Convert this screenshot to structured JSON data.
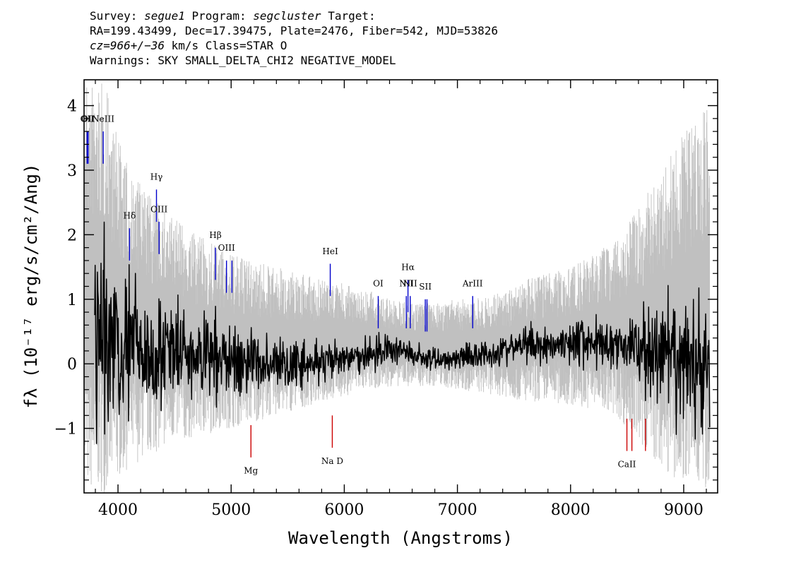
{
  "header": {
    "line1": {
      "survey_key": "Survey:",
      "survey": "segue1",
      "program_key": "Program:",
      "program": "segcluster",
      "target_key": "Target:"
    },
    "line2": "RA=199.43499, Dec=17.39475, Plate=2476, Fiber=542, MJD=53826",
    "line3": {
      "cz": "cz=966+/−36",
      "rest": "km/s Class=STAR O"
    },
    "line4": "Warnings: SKY SMALL_DELTA_CHI2 NEGATIVE_MODEL"
  },
  "chart_data": {
    "type": "line",
    "xlabel": "Wavelength (Angstroms)",
    "ylabel": "fλ (10⁻¹⁷ erg/s/cm²/Ang)",
    "xlim": [
      3700,
      9300
    ],
    "ylim": [
      -2.0,
      4.4
    ],
    "x_ticks": [
      4000,
      5000,
      6000,
      7000,
      8000,
      9000
    ],
    "x_tick_labels": [
      "4000",
      "5000",
      "6000",
      "7000",
      "8000",
      "9000"
    ],
    "y_ticks": [
      -1,
      0,
      1,
      2,
      3,
      4
    ],
    "y_tick_labels": [
      "−1",
      "0",
      "1",
      "2",
      "3",
      "4"
    ],
    "grid": false,
    "series": [
      {
        "role": "flux-error",
        "color": "#c0c0c0",
        "x": [
          3700,
          3800,
          3900,
          4000,
          4100,
          4200,
          4300,
          4400,
          4500,
          4600,
          4700,
          4800,
          4900,
          5000,
          5200,
          5400,
          5600,
          5800,
          6000,
          6200,
          6400,
          6600,
          6800,
          7000,
          7200,
          7400,
          7600,
          7800,
          8000,
          8200,
          8400,
          8600,
          8800,
          9000,
          9200
        ],
        "y_low": [
          -2.0,
          -2.0,
          -2.0,
          -1.8,
          -1.6,
          -1.5,
          -1.4,
          -1.3,
          -1.2,
          -1.2,
          -1.1,
          -1.1,
          -1.0,
          -1.0,
          -0.9,
          -0.8,
          -0.7,
          -0.6,
          -0.5,
          -0.4,
          -0.35,
          -0.35,
          -0.35,
          -0.4,
          -0.45,
          -0.5,
          -0.6,
          -0.6,
          -0.65,
          -0.7,
          -0.8,
          -1.2,
          -1.6,
          -1.9,
          -2.0
        ],
        "y_high": [
          4.4,
          4.4,
          4.3,
          3.5,
          3.0,
          2.8,
          2.6,
          2.4,
          2.3,
          2.1,
          2.0,
          1.9,
          1.8,
          1.7,
          1.6,
          1.5,
          1.4,
          1.3,
          1.25,
          1.15,
          1.0,
          0.95,
          0.95,
          1.0,
          1.05,
          1.1,
          1.3,
          1.4,
          1.5,
          1.7,
          1.9,
          2.4,
          3.0,
          3.6,
          4.0
        ]
      },
      {
        "role": "flux",
        "color": "#000000",
        "x": [
          3700,
          3800,
          3900,
          4000,
          4100,
          4200,
          4300,
          4400,
          4500,
          4600,
          4700,
          4800,
          4900,
          5000,
          5200,
          5400,
          5600,
          5800,
          6000,
          6200,
          6400,
          6600,
          6800,
          7000,
          7200,
          7400,
          7600,
          7800,
          8000,
          8200,
          8400,
          8600,
          8800,
          9000,
          9200
        ],
        "y": [
          1.2,
          0.6,
          0.4,
          0.3,
          0.25,
          0.2,
          0.2,
          0.2,
          0.15,
          0.15,
          0.1,
          0.1,
          0.1,
          0.05,
          0.05,
          0.0,
          0.0,
          0.0,
          0.05,
          0.15,
          0.25,
          0.15,
          0.05,
          0.1,
          0.15,
          0.2,
          0.3,
          0.3,
          0.35,
          0.35,
          0.3,
          0.25,
          0.1,
          0.0,
          0.0
        ],
        "amplitude": [
          1.6,
          1.4,
          1.2,
          0.9,
          0.8,
          0.7,
          0.65,
          0.6,
          0.55,
          0.5,
          0.5,
          0.45,
          0.45,
          0.4,
          0.35,
          0.3,
          0.28,
          0.25,
          0.22,
          0.2,
          0.18,
          0.15,
          0.15,
          0.16,
          0.17,
          0.18,
          0.2,
          0.22,
          0.24,
          0.28,
          0.32,
          0.45,
          0.6,
          0.75,
          0.9
        ]
      }
    ],
    "emission_lines": [
      {
        "label": "OII",
        "wavelength": 3727,
        "y_base": 3.1,
        "y_top": 3.6,
        "label_y": 3.75,
        "color": "#0000cc"
      },
      {
        "label": "OII",
        "wavelength": 3736,
        "y_base": 3.1,
        "y_top": 3.6,
        "label_y": 3.75,
        "color": "#0000cc"
      },
      {
        "label": "NeIII",
        "wavelength": 3869,
        "y_base": 3.1,
        "y_top": 3.6,
        "label_y": 3.75,
        "color": "#0000cc"
      },
      {
        "label": "Hδ",
        "wavelength": 4102,
        "y_base": 1.6,
        "y_top": 2.1,
        "label_y": 2.25,
        "color": "#0000cc"
      },
      {
        "label": "Hγ",
        "wavelength": 4340,
        "y_base": 2.2,
        "y_top": 2.7,
        "label_y": 2.85,
        "color": "#0000cc"
      },
      {
        "label": "OIII",
        "wavelength": 4363,
        "y_base": 1.7,
        "y_top": 2.2,
        "label_y": 2.35,
        "color": "#0000cc"
      },
      {
        "label": "Hβ",
        "wavelength": 4861,
        "y_base": 1.3,
        "y_top": 1.8,
        "label_y": 1.95,
        "color": "#0000cc"
      },
      {
        "label": "OIII",
        "wavelength": 4959,
        "y_base": 1.1,
        "y_top": 1.6,
        "label_y": 1.75,
        "color": "#0000cc"
      },
      {
        "label": "",
        "wavelength": 5007,
        "y_base": 1.1,
        "y_top": 1.6,
        "label_y": 1.75,
        "color": "#0000cc"
      },
      {
        "label": "HeI",
        "wavelength": 5876,
        "y_base": 1.05,
        "y_top": 1.55,
        "label_y": 1.7,
        "color": "#0000cc"
      },
      {
        "label": "OI",
        "wavelength": 6300,
        "y_base": 0.55,
        "y_top": 1.05,
        "label_y": 1.2,
        "color": "#0000cc"
      },
      {
        "label": "NII",
        "wavelength": 6548,
        "y_base": 0.55,
        "y_top": 1.05,
        "label_y": 1.2,
        "color": "#0000cc"
      },
      {
        "label": "Hα",
        "wavelength": 6563,
        "y_base": 0.8,
        "y_top": 1.3,
        "label_y": 1.45,
        "color": "#0000cc"
      },
      {
        "label": "NII",
        "wavelength": 6583,
        "y_base": 0.55,
        "y_top": 1.05,
        "label_y": 1.2,
        "color": "#0000cc"
      },
      {
        "label": "SII",
        "wavelength": 6716,
        "y_base": 0.5,
        "y_top": 1.0,
        "label_y": 1.15,
        "color": "#0000cc"
      },
      {
        "label": "",
        "wavelength": 6731,
        "y_base": 0.5,
        "y_top": 1.0,
        "label_y": 1.15,
        "color": "#0000cc"
      },
      {
        "label": "ArIII",
        "wavelength": 7135,
        "y_base": 0.55,
        "y_top": 1.05,
        "label_y": 1.2,
        "color": "#0000cc"
      }
    ],
    "absorption_lines": [
      {
        "label": "Mg",
        "wavelength": 5175,
        "y_top": -0.95,
        "y_bottom": -1.45,
        "label_y": -1.7,
        "color": "#cc0000"
      },
      {
        "label": "Na D",
        "wavelength": 5894,
        "y_top": -0.8,
        "y_bottom": -1.3,
        "label_y": -1.55,
        "color": "#cc0000"
      },
      {
        "label": "CaII",
        "wavelength": 8498,
        "y_top": -0.85,
        "y_bottom": -1.35,
        "label_y": -1.6,
        "color": "#cc0000"
      },
      {
        "label": "",
        "wavelength": 8542,
        "y_top": -0.85,
        "y_bottom": -1.35,
        "label_y": -1.6,
        "color": "#cc0000"
      },
      {
        "label": "",
        "wavelength": 8662,
        "y_top": -0.85,
        "y_bottom": -1.35,
        "label_y": -1.6,
        "color": "#cc0000"
      }
    ]
  }
}
